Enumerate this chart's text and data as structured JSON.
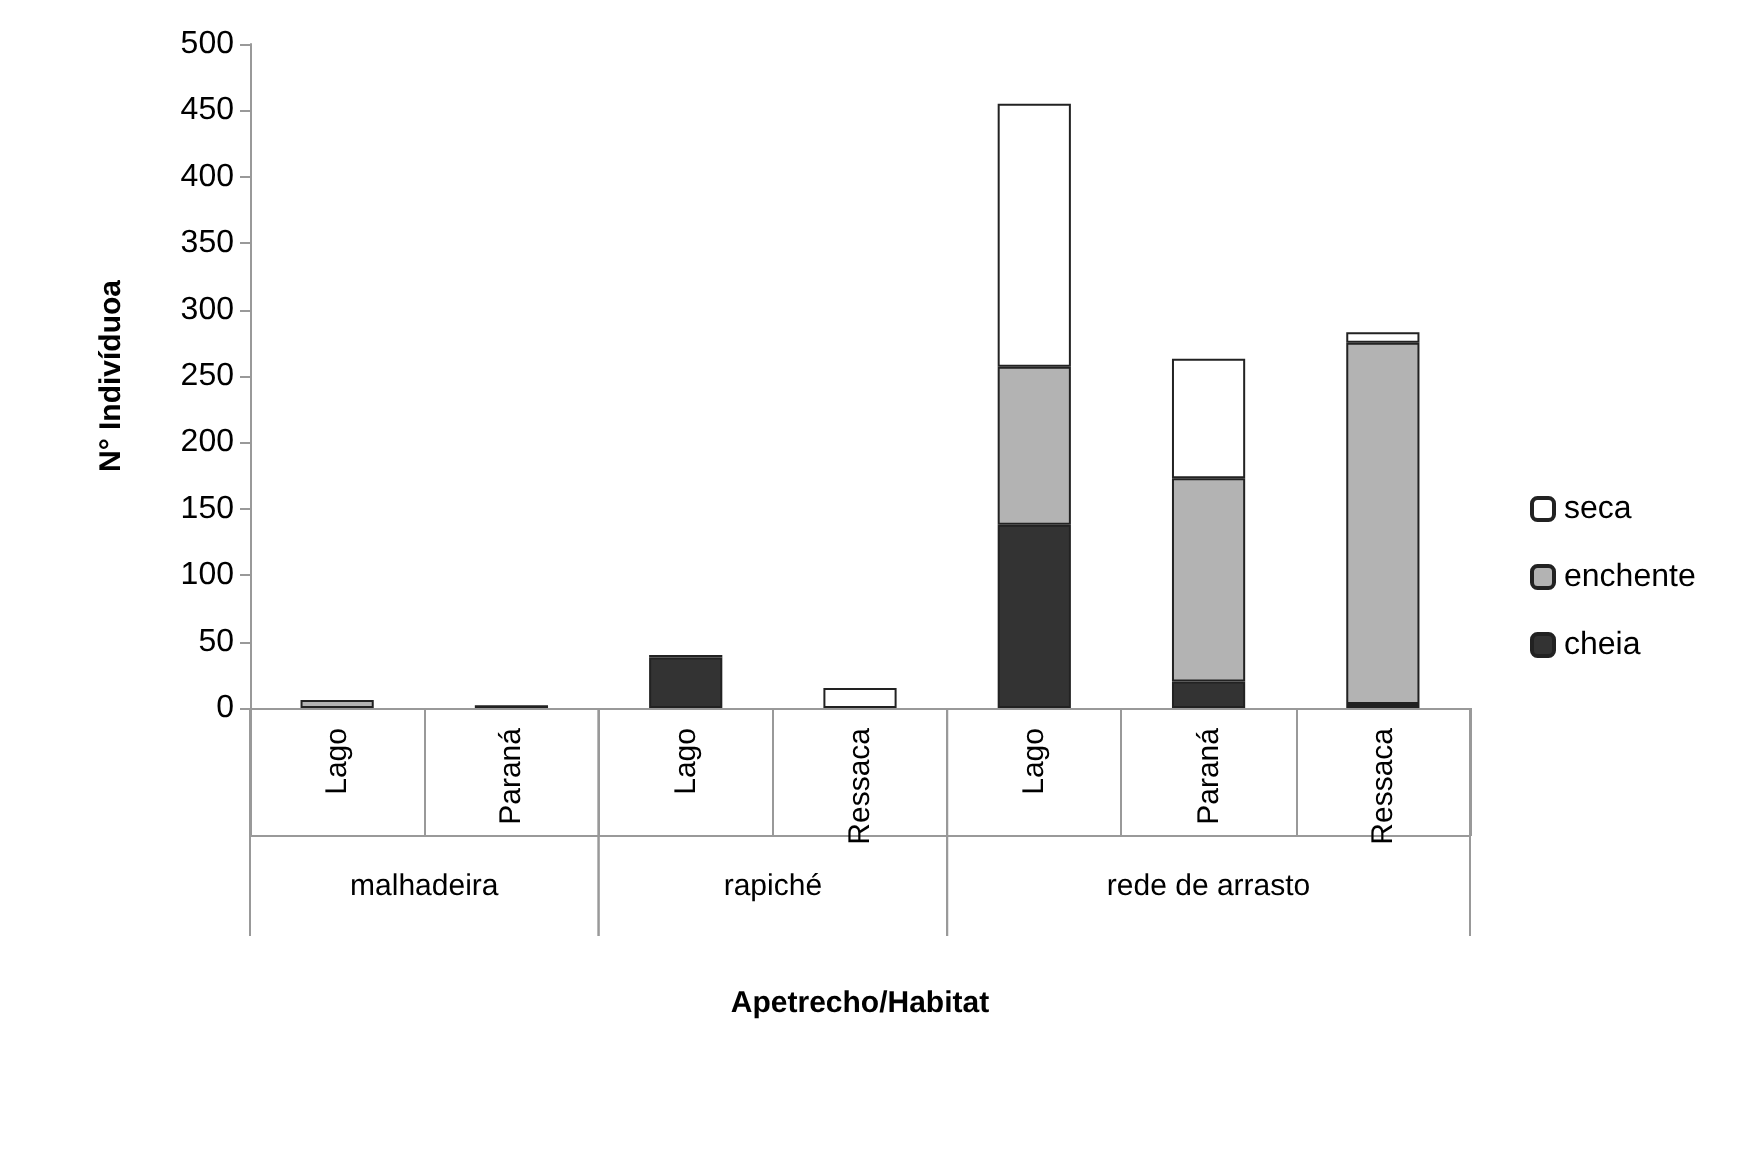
{
  "chart_data": {
    "type": "bar",
    "stacked": true,
    "xlabel": "Apetrecho/Habitat",
    "ylabel": "N° Indivíduoa",
    "categories": [
      "Lago",
      "Paraná",
      "Lago",
      "Ressaca",
      "Lago",
      "Paraná",
      "Ressaca"
    ],
    "annotations": [
      "malhadeira",
      "rapiché",
      "rede de arrasto"
    ],
    "series": [
      {
        "name": "cheia",
        "color": "#333333",
        "values": [
          0,
          2,
          38,
          0,
          138,
          20,
          3
        ]
      },
      {
        "name": "enchente",
        "color": "#b3b3b3",
        "values": [
          6,
          0,
          0,
          0,
          119,
          153,
          272
        ]
      },
      {
        "name": "seca",
        "color": "#ffffff",
        "values": [
          0,
          0,
          2,
          15,
          198,
          90,
          8
        ]
      }
    ],
    "ylim": [
      0,
      500
    ],
    "yticks": [
      0,
      50,
      100,
      150,
      200,
      250,
      300,
      350,
      400,
      450,
      500
    ],
    "grid": false,
    "legend": "right"
  }
}
